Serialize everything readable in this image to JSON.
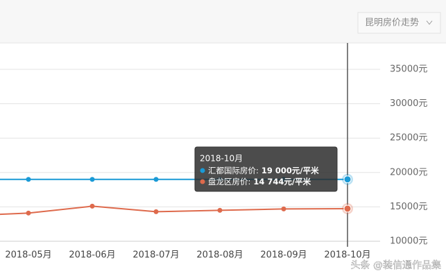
{
  "chart_data": {
    "type": "line",
    "dropdown": "昆明房价走势",
    "categories": [
      null,
      "2018-05月",
      "2018-06月",
      "2018-07月",
      "2018-08月",
      "2018-09月",
      "2018-10月"
    ],
    "series": [
      {
        "name": "汇都国际房价:",
        "color": "#1a9ad6",
        "values": [
          19000,
          19000,
          19000,
          19000,
          19000,
          19000,
          19000
        ],
        "value_labels": [
          null,
          null,
          null,
          null,
          null,
          null,
          "19 000元/平米"
        ]
      },
      {
        "name": "盘龙区房价:",
        "color": "#de6a4c",
        "values": [
          13700,
          14100,
          15100,
          14300,
          14500,
          14700,
          14744
        ],
        "value_labels": [
          null,
          null,
          null,
          null,
          null,
          null,
          "14 744元/平米"
        ]
      }
    ],
    "tooltip_title": "2018-10月",
    "ylim": [
      10000,
      35000
    ],
    "yticks": [
      {
        "value": 10000,
        "label": "10000元"
      },
      {
        "value": 15000,
        "label": "15000元"
      },
      {
        "value": 20000,
        "label": "20000元"
      },
      {
        "value": 25000,
        "label": "25000元"
      },
      {
        "value": 30000,
        "label": "30000元"
      },
      {
        "value": 35000,
        "label": "35000元"
      }
    ],
    "grid": true,
    "watermark": "头条 @装信通作品集"
  }
}
